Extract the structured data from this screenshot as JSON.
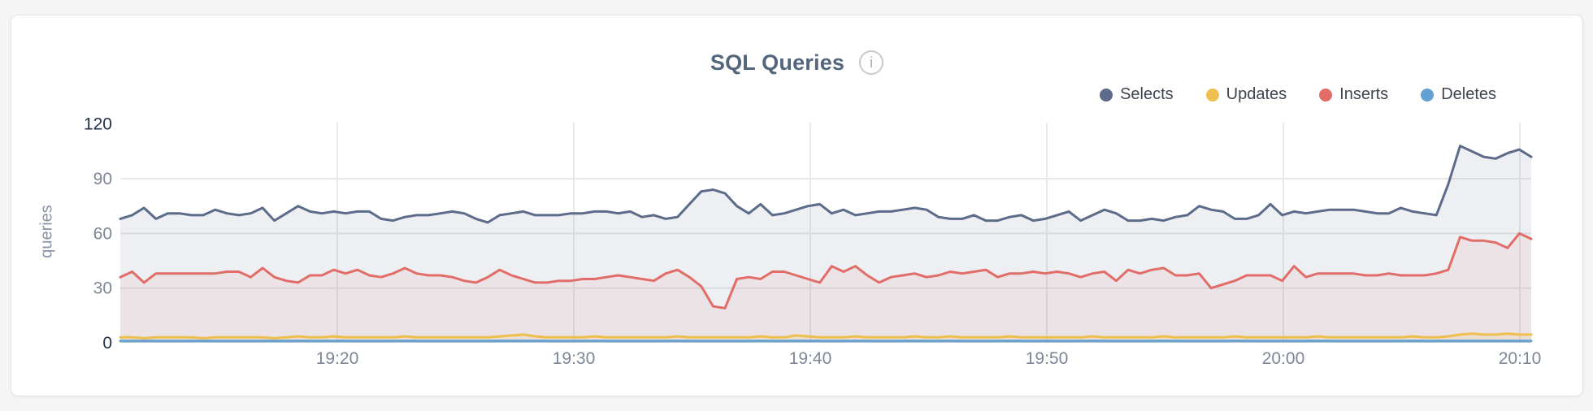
{
  "header": {
    "title": "SQL Queries",
    "info_icon_glyph": "i"
  },
  "chart_data": {
    "type": "area",
    "title": "SQL Queries",
    "ylabel": "queries",
    "xlabel": "",
    "ylim": [
      0,
      120
    ],
    "yticks": [
      0,
      30,
      60,
      90,
      120
    ],
    "ytick_emphasis": [
      0,
      120
    ],
    "xticks": [
      "19:20",
      "19:30",
      "19:40",
      "19:50",
      "20:00",
      "20:10"
    ],
    "x_start_time": "19:11",
    "x_end_time": "20:10",
    "grid": true,
    "legend_position": "top-right",
    "axis_colors": {
      "grid": "#e9e9e9",
      "tick_default": "#7d8696",
      "tick_emphasis": "#22304a"
    },
    "draw_order": [
      "Selects",
      "Inserts",
      "Updates",
      "Deletes"
    ],
    "series": [
      {
        "name": "Selects",
        "color": "#5c6b89",
        "fill_opacity": 0.11,
        "values": [
          68,
          70,
          74,
          68,
          71,
          71,
          70,
          70,
          73,
          71,
          70,
          71,
          74,
          67,
          71,
          75,
          72,
          71,
          72,
          71,
          72,
          72,
          68,
          67,
          69,
          70,
          70,
          71,
          72,
          71,
          68,
          66,
          70,
          71,
          72,
          70,
          70,
          70,
          71,
          71,
          72,
          72,
          71,
          72,
          69,
          70,
          68,
          69,
          76,
          83,
          84,
          82,
          75,
          71,
          76,
          70,
          71,
          73,
          75,
          76,
          71,
          73,
          70,
          71,
          72,
          72,
          73,
          74,
          73,
          69,
          68,
          68,
          70,
          67,
          67,
          69,
          70,
          67,
          68,
          70,
          72,
          67,
          70,
          73,
          71,
          67,
          67,
          68,
          67,
          69,
          70,
          75,
          73,
          72,
          68,
          68,
          70,
          76,
          70,
          72,
          71,
          72,
          73,
          73,
          73,
          72,
          71,
          71,
          74,
          72,
          71,
          70,
          87,
          108,
          105,
          102,
          101,
          104,
          106,
          102
        ]
      },
      {
        "name": "Updates",
        "color": "#ecbf4f",
        "fill_opacity": 0.13,
        "values": [
          3,
          3,
          2.5,
          3,
          3,
          3,
          3,
          2.5,
          3,
          3,
          3,
          3,
          3,
          2.5,
          3,
          3.5,
          3,
          3,
          3.5,
          3,
          3,
          3,
          3,
          3,
          3.5,
          3,
          3,
          3,
          3,
          3,
          3,
          3,
          3.5,
          4,
          4.5,
          3.5,
          3,
          3,
          3,
          3,
          3.5,
          3,
          3,
          3,
          3,
          3,
          3,
          3.5,
          3,
          3,
          3,
          3,
          3,
          3,
          3.5,
          3,
          3,
          4,
          3.5,
          3,
          3,
          3,
          3.5,
          3,
          3,
          3,
          3,
          3.5,
          3,
          3,
          3.5,
          3,
          3,
          3,
          3,
          3.5,
          3,
          3,
          3,
          3,
          3,
          3,
          3.5,
          3,
          3,
          3,
          3,
          3,
          3.5,
          3,
          3,
          3,
          3,
          3,
          3.5,
          3,
          3,
          3,
          3,
          3,
          3,
          3.5,
          3,
          3,
          3,
          3,
          3,
          3,
          3,
          3.5,
          3,
          3,
          3.5,
          4.5,
          5,
          4.5,
          4.5,
          5,
          4.5,
          4.5
        ]
      },
      {
        "name": "Inserts",
        "color": "#e26d68",
        "fill_opacity": 0.09,
        "values": [
          36,
          39,
          33,
          38,
          38,
          38,
          38,
          38,
          38,
          39,
          39,
          36,
          41,
          36,
          34,
          33,
          37,
          37,
          40,
          38,
          40,
          37,
          36,
          38,
          41,
          38,
          37,
          37,
          36,
          34,
          33,
          36,
          40,
          37,
          35,
          33,
          33,
          34,
          34,
          35,
          35,
          36,
          37,
          36,
          35,
          34,
          38,
          40,
          36,
          31,
          20,
          19,
          35,
          36,
          35,
          39,
          39,
          37,
          35,
          33,
          42,
          39,
          42,
          37,
          33,
          36,
          37,
          38,
          36,
          37,
          39,
          38,
          39,
          40,
          36,
          38,
          38,
          39,
          38,
          39,
          38,
          36,
          38,
          39,
          34,
          40,
          38,
          40,
          41,
          37,
          37,
          38,
          30,
          32,
          34,
          37,
          37,
          37,
          34,
          42,
          36,
          38,
          38,
          38,
          38,
          37,
          37,
          38,
          37,
          37,
          37,
          38,
          40,
          58,
          56,
          56,
          55,
          52,
          60,
          57
        ]
      },
      {
        "name": "Deletes",
        "color": "#64a0d2",
        "fill_opacity": 0.18,
        "values": [
          1,
          1,
          1,
          1,
          1,
          1,
          1,
          1,
          1,
          1,
          1,
          1,
          1,
          1,
          1,
          1,
          1,
          1,
          1,
          1,
          1,
          1,
          1,
          1,
          1,
          1,
          1,
          1,
          1,
          1,
          1,
          1,
          1,
          1,
          1,
          1,
          1,
          1,
          1,
          1,
          1,
          1,
          1,
          1,
          1,
          1,
          1,
          1,
          1,
          1,
          1,
          1,
          1,
          1,
          1,
          1,
          1,
          1,
          1,
          1,
          1,
          1,
          1,
          1,
          1,
          1,
          1,
          1,
          1,
          1,
          1,
          1,
          1,
          1,
          1,
          1,
          1,
          1,
          1,
          1,
          1,
          1,
          1,
          1,
          1,
          1,
          1,
          1,
          1,
          1,
          1,
          1,
          1,
          1,
          1,
          1,
          1,
          1,
          1,
          1,
          1,
          1,
          1,
          1,
          1,
          1,
          1,
          1,
          1,
          1,
          1,
          1,
          1,
          1,
          1,
          1,
          1,
          1,
          1,
          1
        ]
      }
    ]
  }
}
